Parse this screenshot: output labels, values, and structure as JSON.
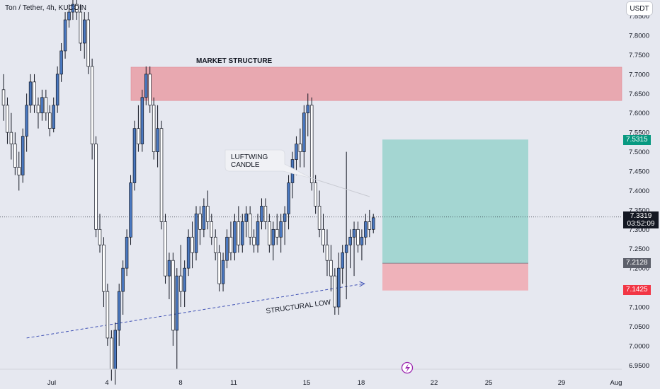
{
  "header": {
    "symbol_title": "Ton / Tether, 4h, KUCOIN",
    "currency": "USDT"
  },
  "price_tags": {
    "current_price": "7.3319",
    "countdown": "03:52:09",
    "target": "7.5315",
    "entry": "7.2128",
    "stop": "7.1425"
  },
  "annotations": {
    "market_structure": "MARKET STRUCTURE",
    "callout_line1": "LUFTWING",
    "callout_line2": "CANDLE",
    "structural_low": "STRUCTURAL LOW"
  },
  "colors": {
    "background": "#e6e8f0",
    "up_candle": "#4a78c0",
    "down_candle": "#ffffff",
    "wick": "#131722",
    "supply_zone": "#e8a8b0",
    "target_zone": "#8ed0c8",
    "stop_zone": "#f0a8b0",
    "target_tag": "#089981",
    "entry_tag": "#5d606b",
    "stop_tag": "#f23645",
    "trendline": "#3f51b5",
    "structural_low_text": "#2e7d32",
    "lightning_icon": "#9c27b0"
  },
  "chart_data": {
    "type": "candlestick",
    "title": "Ton / Tether, 4h, KUCOIN",
    "y_axis_ticks": [
      "7.8500",
      "7.8000",
      "7.7500",
      "7.7000",
      "7.6500",
      "7.6000",
      "7.5500",
      "7.5000",
      "7.4500",
      "7.4000",
      "7.3500",
      "7.3000",
      "7.2500",
      "7.2000",
      "7.1500",
      "7.1000",
      "7.0500",
      "7.0000",
      "6.9500"
    ],
    "x_axis_ticks": [
      "Jul",
      "4",
      "8",
      "11",
      "15",
      "18",
      "22",
      "25",
      "29",
      "Aug"
    ],
    "ylim": [
      6.935,
      7.86
    ],
    "last_price": 7.3319,
    "zones": {
      "supply_zone": [
        7.632,
        7.718
      ],
      "target_zone": [
        7.2128,
        7.5315
      ],
      "stop_zone": [
        7.1425,
        7.2128
      ]
    },
    "trendline": [
      [
        6.0,
        7.02
      ],
      [
        93.5,
        7.16
      ]
    ],
    "candles": [
      [
        0,
        7.66,
        7.7,
        7.58,
        7.62
      ],
      [
        1,
        7.62,
        7.64,
        7.52,
        7.55
      ],
      [
        2,
        7.55,
        7.6,
        7.48,
        7.52
      ],
      [
        3,
        7.52,
        7.55,
        7.44,
        7.46
      ],
      [
        4,
        7.46,
        7.5,
        7.4,
        7.44
      ],
      [
        5,
        7.44,
        7.56,
        7.42,
        7.54
      ],
      [
        6,
        7.54,
        7.65,
        7.5,
        7.62
      ],
      [
        7,
        7.62,
        7.7,
        7.6,
        7.68
      ],
      [
        8,
        7.68,
        7.7,
        7.6,
        7.62
      ],
      [
        9,
        7.62,
        7.64,
        7.56,
        7.6
      ],
      [
        10,
        7.6,
        7.66,
        7.58,
        7.64
      ],
      [
        11,
        7.64,
        7.66,
        7.58,
        7.6
      ],
      [
        12,
        7.6,
        7.62,
        7.54,
        7.56
      ],
      [
        13,
        7.56,
        7.64,
        7.55,
        7.62
      ],
      [
        14,
        7.62,
        7.72,
        7.6,
        7.7
      ],
      [
        15,
        7.7,
        7.78,
        7.68,
        7.76
      ],
      [
        16,
        7.76,
        7.86,
        7.74,
        7.84
      ],
      [
        17,
        7.84,
        7.88,
        7.82,
        7.86
      ],
      [
        18,
        7.86,
        7.9,
        7.84,
        7.88
      ],
      [
        19,
        7.88,
        7.9,
        7.84,
        7.86
      ],
      [
        20,
        7.86,
        7.88,
        7.76,
        7.78
      ],
      [
        21,
        7.78,
        7.86,
        7.74,
        7.84
      ],
      [
        22,
        7.84,
        7.86,
        7.7,
        7.72
      ],
      [
        23,
        7.72,
        7.74,
        7.48,
        7.52
      ],
      [
        24,
        7.52,
        7.54,
        7.28,
        7.3
      ],
      [
        25,
        7.3,
        7.34,
        7.24,
        7.26
      ],
      [
        26,
        7.26,
        7.28,
        7.1,
        7.14
      ],
      [
        27,
        7.14,
        7.16,
        7.0,
        7.02
      ],
      [
        28,
        7.02,
        7.04,
        6.91,
        6.94
      ],
      [
        29,
        6.94,
        7.06,
        6.9,
        7.04
      ],
      [
        30,
        7.04,
        7.16,
        7.0,
        7.14
      ],
      [
        31,
        7.14,
        7.22,
        7.08,
        7.2
      ],
      [
        32,
        7.2,
        7.3,
        7.18,
        7.28
      ],
      [
        33,
        7.28,
        7.44,
        7.26,
        7.42
      ],
      [
        34,
        7.42,
        7.58,
        7.4,
        7.56
      ],
      [
        35,
        7.56,
        7.62,
        7.5,
        7.52
      ],
      [
        36,
        7.52,
        7.66,
        7.5,
        7.64
      ],
      [
        37,
        7.64,
        7.72,
        7.62,
        7.7
      ],
      [
        38,
        7.7,
        7.72,
        7.6,
        7.62
      ],
      [
        39,
        7.62,
        7.64,
        7.48,
        7.5
      ],
      [
        40,
        7.5,
        7.62,
        7.46,
        7.56
      ],
      [
        41,
        7.56,
        7.58,
        7.3,
        7.32
      ],
      [
        42,
        7.32,
        7.34,
        7.16,
        7.18
      ],
      [
        43,
        7.18,
        7.24,
        7.12,
        7.22
      ],
      [
        44,
        7.22,
        7.24,
        7.0,
        7.04
      ],
      [
        45,
        7.04,
        7.2,
        6.94,
        7.18
      ],
      [
        46,
        7.18,
        7.26,
        7.1,
        7.14
      ],
      [
        47,
        7.14,
        7.22,
        7.1,
        7.2
      ],
      [
        48,
        7.2,
        7.3,
        7.18,
        7.28
      ],
      [
        49,
        7.28,
        7.32,
        7.2,
        7.24
      ],
      [
        50,
        7.24,
        7.36,
        7.22,
        7.34
      ],
      [
        51,
        7.34,
        7.36,
        7.26,
        7.3
      ],
      [
        52,
        7.3,
        7.38,
        7.28,
        7.36
      ],
      [
        53,
        7.36,
        7.4,
        7.3,
        7.32
      ],
      [
        54,
        7.32,
        7.34,
        7.26,
        7.28
      ],
      [
        55,
        7.28,
        7.3,
        7.22,
        7.24
      ],
      [
        56,
        7.24,
        7.26,
        7.14,
        7.16
      ],
      [
        57,
        7.16,
        7.24,
        7.14,
        7.22
      ],
      [
        58,
        7.22,
        7.3,
        7.2,
        7.28
      ],
      [
        59,
        7.28,
        7.32,
        7.22,
        7.24
      ],
      [
        60,
        7.24,
        7.34,
        7.22,
        7.32
      ],
      [
        61,
        7.32,
        7.36,
        7.24,
        7.26
      ],
      [
        62,
        7.26,
        7.34,
        7.24,
        7.32
      ],
      [
        63,
        7.32,
        7.36,
        7.28,
        7.34
      ],
      [
        64,
        7.34,
        7.36,
        7.26,
        7.28
      ],
      [
        65,
        7.28,
        7.3,
        7.24,
        7.26
      ],
      [
        66,
        7.26,
        7.34,
        7.24,
        7.32
      ],
      [
        67,
        7.32,
        7.38,
        7.3,
        7.36
      ],
      [
        68,
        7.36,
        7.38,
        7.3,
        7.32
      ],
      [
        69,
        7.32,
        7.34,
        7.24,
        7.26
      ],
      [
        70,
        7.26,
        7.32,
        7.22,
        7.3
      ],
      [
        71,
        7.3,
        7.34,
        7.26,
        7.28
      ],
      [
        72,
        7.28,
        7.34,
        7.24,
        7.32
      ],
      [
        73,
        7.32,
        7.36,
        7.26,
        7.34
      ],
      [
        74,
        7.34,
        7.44,
        7.3,
        7.42
      ],
      [
        75,
        7.42,
        7.5,
        7.38,
        7.48
      ],
      [
        76,
        7.48,
        7.54,
        7.44,
        7.52
      ],
      [
        77,
        7.52,
        7.56,
        7.46,
        7.5
      ],
      [
        78,
        7.5,
        7.62,
        7.46,
        7.6
      ],
      [
        79,
        7.6,
        7.65,
        7.54,
        7.62
      ],
      [
        80,
        7.62,
        7.64,
        7.4,
        7.42
      ],
      [
        81,
        7.42,
        7.44,
        7.34,
        7.36
      ],
      [
        82,
        7.36,
        7.4,
        7.28,
        7.3
      ],
      [
        83,
        7.3,
        7.34,
        7.24,
        7.26
      ],
      [
        84,
        7.26,
        7.3,
        7.18,
        7.22
      ],
      [
        85,
        7.22,
        7.26,
        7.14,
        7.18
      ],
      [
        86,
        7.18,
        7.2,
        7.08,
        7.1
      ],
      [
        87,
        7.1,
        7.24,
        7.08,
        7.2
      ],
      [
        88,
        7.2,
        7.26,
        7.16,
        7.24
      ],
      [
        89,
        7.24,
        7.5,
        7.12,
        7.26
      ],
      [
        90,
        7.26,
        7.3,
        7.2,
        7.28
      ],
      [
        91,
        7.28,
        7.32,
        7.18,
        7.3
      ],
      [
        92,
        7.3,
        7.32,
        7.24,
        7.26
      ],
      [
        93,
        7.26,
        7.3,
        7.22,
        7.28
      ],
      [
        94,
        7.28,
        7.34,
        7.26,
        7.32
      ],
      [
        95,
        7.32,
        7.35,
        7.28,
        7.3
      ],
      [
        96,
        7.3,
        7.34,
        7.29,
        7.33
      ]
    ]
  }
}
